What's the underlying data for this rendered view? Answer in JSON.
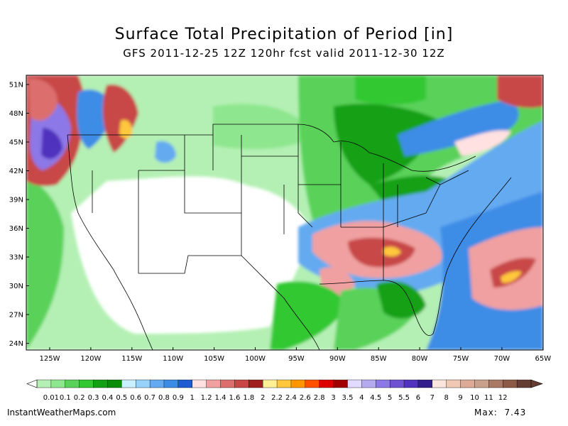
{
  "header": {
    "title": "Surface Total Precipitation of Period [in]",
    "subtitle": "GFS 2011-12-25 12Z 120hr fcst valid 2011-12-30 12Z"
  },
  "map": {
    "lat_labels": [
      "51N",
      "48N",
      "45N",
      "42N",
      "39N",
      "36N",
      "33N",
      "30N",
      "27N",
      "24N"
    ],
    "lon_labels": [
      "125W",
      "120W",
      "115W",
      "110W",
      "105W",
      "100W",
      "95W",
      "90W",
      "85W",
      "80W",
      "75W",
      "70W",
      "65W"
    ]
  },
  "legend": {
    "labels": [
      "0.01",
      "0.1",
      "0.2",
      "0.3",
      "0.4",
      "0.5",
      "0.6",
      "0.7",
      "0.8",
      "0.9",
      "1",
      "1.2",
      "1.4",
      "1.6",
      "1.8",
      "2",
      "2.2",
      "2.4",
      "2.6",
      "2.8",
      "3",
      "3.5",
      "4",
      "4.5",
      "5",
      "5.5",
      "6",
      "7",
      "8",
      "9",
      "10",
      "11",
      "12"
    ],
    "colors": [
      "#b4f0b4",
      "#8ee68e",
      "#5ad25a",
      "#32c832",
      "#14a014",
      "#0a8c0a",
      "#c8f0ff",
      "#96d2fa",
      "#64aaf0",
      "#3c8ce6",
      "#1e5ad2",
      "#ffe1e1",
      "#f0a0a0",
      "#dc6e6e",
      "#c84646",
      "#a01e1e",
      "#fff096",
      "#ffc83c",
      "#ff9600",
      "#ff5000",
      "#dc0000",
      "#a00000",
      "#e1dcff",
      "#b4aaf0",
      "#8c78e6",
      "#6e50d2",
      "#5032be",
      "#321e8c",
      "#fae6dc",
      "#f0c8b4",
      "#dcaa96",
      "#c8a08c",
      "#aa7864",
      "#8c5a46",
      "#643c32"
    ]
  },
  "footer": {
    "site": "InstantWeatherMaps.com",
    "max_label": "Max:",
    "max_value": "7.43"
  }
}
